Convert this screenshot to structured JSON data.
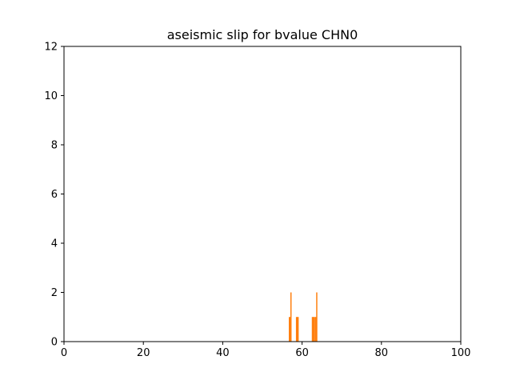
{
  "chart_data": {
    "type": "bar",
    "title": "aseismic slip for bvalue CHN0",
    "xlabel": "",
    "ylabel": "",
    "xlim": [
      0,
      100
    ],
    "ylim": [
      0,
      12
    ],
    "xticks": [
      0,
      20,
      40,
      60,
      80,
      100
    ],
    "yticks": [
      0,
      2,
      4,
      6,
      8,
      10,
      12
    ],
    "grid": false,
    "bar_color": "#ff7f0e",
    "bar_width": 0.3,
    "x": [
      56.8,
      57.0,
      57.2,
      58.6,
      58.8,
      59.0,
      62.6,
      62.8,
      63.0,
      63.3,
      63.5,
      63.7
    ],
    "values": [
      1,
      1,
      2,
      1,
      1,
      1,
      1,
      1,
      1,
      1,
      1,
      2
    ]
  }
}
